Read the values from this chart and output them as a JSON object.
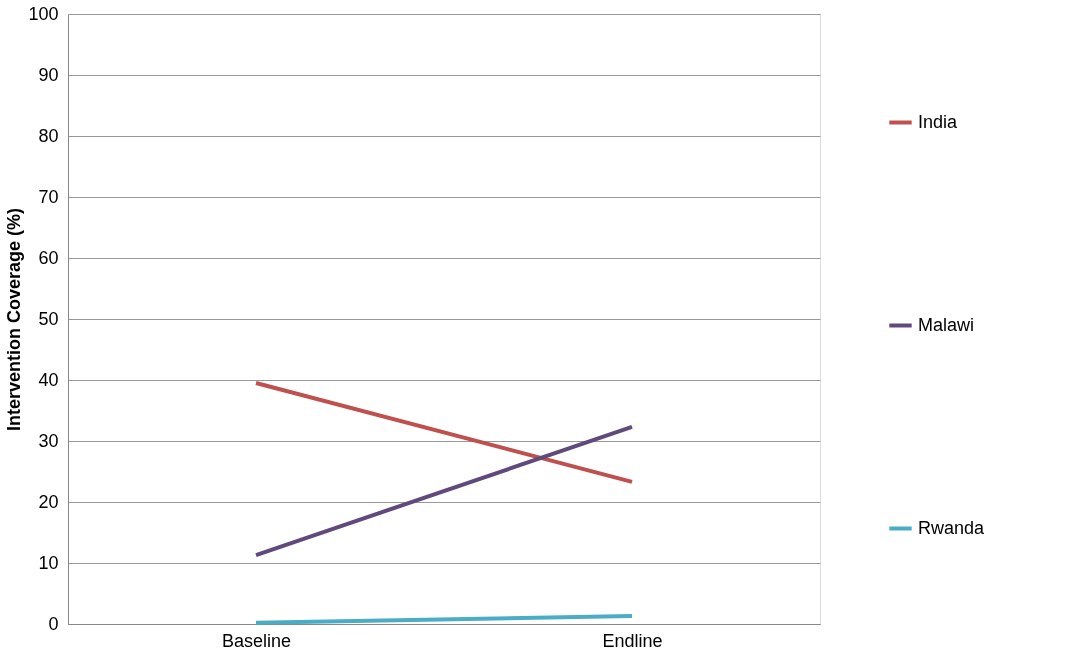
{
  "chart_data": {
    "type": "line",
    "ylabel": "Intervention Coverage (%)",
    "categories": [
      "Baseline",
      "Endline"
    ],
    "series": [
      {
        "name": "India",
        "color": "#c0504d",
        "values": [
          39.5,
          23.3
        ]
      },
      {
        "name": "Malawi",
        "color": "#604a7b",
        "values": [
          11.3,
          32.3
        ]
      },
      {
        "name": "Rwanda",
        "color": "#4bacc6",
        "values": [
          0.2,
          1.3
        ]
      }
    ],
    "ylim": [
      0,
      100
    ],
    "yticks": [
      0,
      10,
      20,
      30,
      40,
      50,
      60,
      70,
      80,
      90,
      100
    ],
    "grid": "y",
    "legend": "right",
    "marker": "none",
    "line_style": "solid"
  }
}
